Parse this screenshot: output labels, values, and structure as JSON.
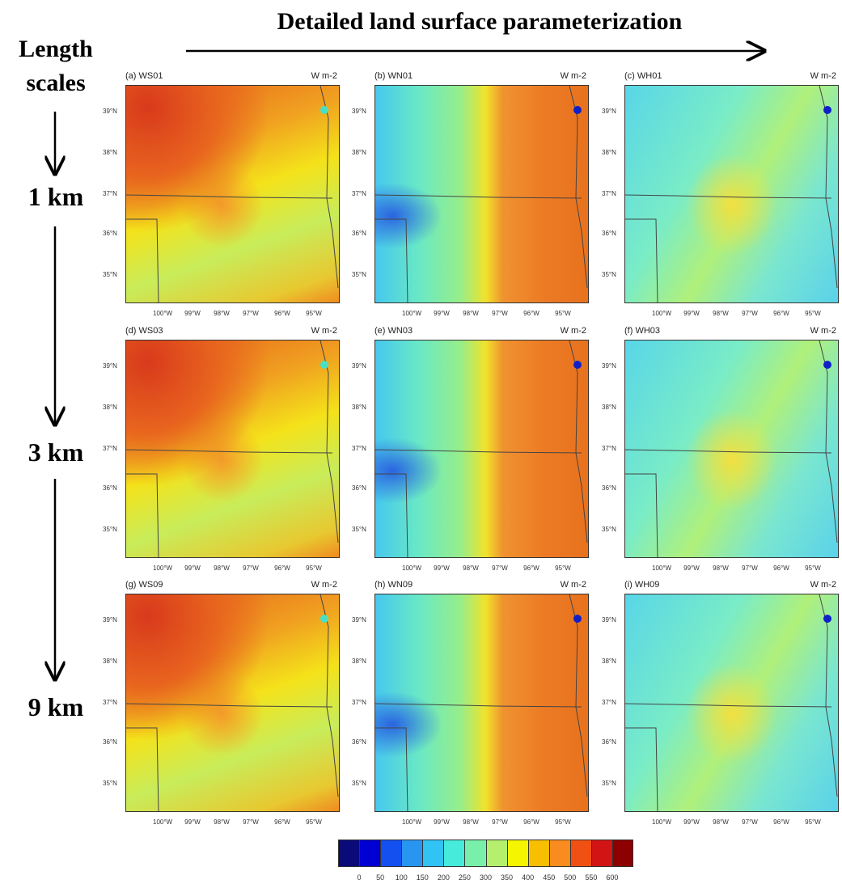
{
  "header": {
    "title": "Detailed land surface parameterization",
    "length_label": "Length scales"
  },
  "row_labels": [
    "1 km",
    "3 km",
    "9 km"
  ],
  "panels": [
    {
      "label": "(a) WS01",
      "unit": "W m-2"
    },
    {
      "label": "(b) WN01",
      "unit": "W m-2"
    },
    {
      "label": "(c) WH01",
      "unit": "W m-2"
    },
    {
      "label": "(d) WS03",
      "unit": "W m-2"
    },
    {
      "label": "(e) WN03",
      "unit": "W m-2"
    },
    {
      "label": "(f) WH03",
      "unit": "W m-2"
    },
    {
      "label": "(g) WS09",
      "unit": "W m-2"
    },
    {
      "label": "(h) WN09",
      "unit": "W m-2"
    },
    {
      "label": "(i) WH09",
      "unit": "W m-2"
    }
  ],
  "lat_ticks": [
    "39°N",
    "38°N",
    "37°N",
    "36°N",
    "35°N"
  ],
  "lon_ticks": [
    "100°W",
    "99°W",
    "98°W",
    "97°W",
    "96°W",
    "95°W"
  ],
  "colorbar": {
    "ticks": [
      0,
      50,
      100,
      150,
      200,
      250,
      300,
      350,
      400,
      450,
      500,
      550,
      600
    ],
    "colors": [
      "#0a0a78",
      "#0000d2",
      "#1450f0",
      "#2896f0",
      "#32c3f5",
      "#46ebdc",
      "#78f0aa",
      "#b4f06e",
      "#f5f500",
      "#f8be00",
      "#f88c1e",
      "#f05014",
      "#d21414",
      "#8c0000"
    ]
  }
}
